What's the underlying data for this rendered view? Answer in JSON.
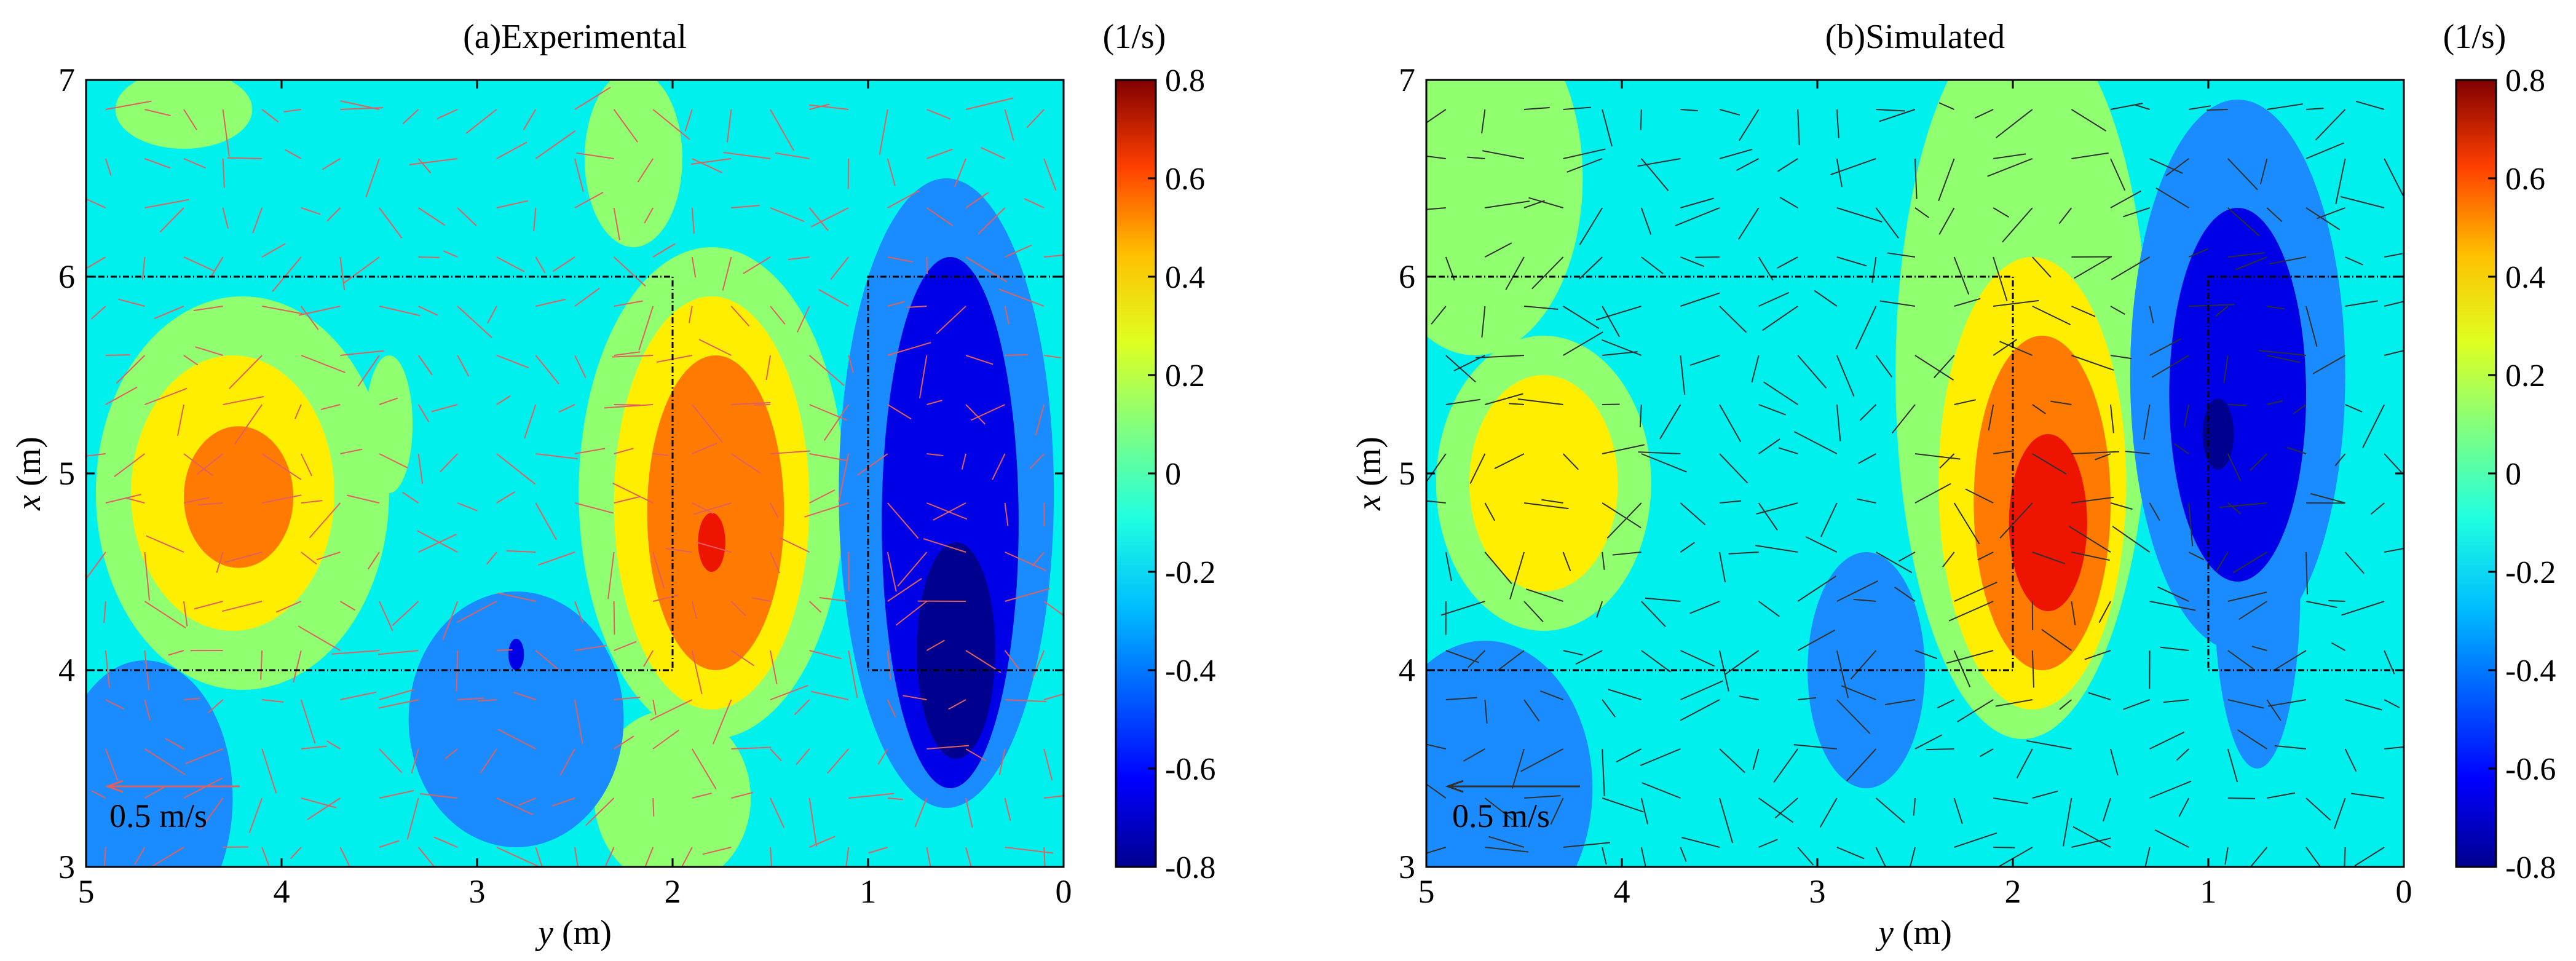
{
  "chart_data": [
    {
      "type": "heatmap",
      "subtype": "filled-contour-with-velocity-vectors",
      "title": "(a)Experimental",
      "colorbar_unit": "(1/s)",
      "xlabel_italic": "y",
      "xlabel_unit": " (m)",
      "ylabel_italic": "x",
      "ylabel_unit": " (m)",
      "xlim": [
        5,
        0
      ],
      "ylim": [
        3,
        7
      ],
      "x_ticks": [
        5,
        4,
        3,
        2,
        1,
        0
      ],
      "y_ticks": [
        3,
        4,
        5,
        6,
        7
      ],
      "colorbar_range": [
        -0.8,
        0.8
      ],
      "colorbar_ticks": [
        "0.8",
        "0.6",
        "0.4",
        "0.2",
        "0",
        "-0.2",
        "-0.4",
        "-0.6",
        "-0.8"
      ],
      "vector_scale_label": "0.5 m/s",
      "vector_scale_value": 0.5,
      "vector_color": "#e06060",
      "rectangles": [
        {
          "y_from": 5,
          "y_to": 2,
          "x_from": 4,
          "x_to": 6
        },
        {
          "y_from": 1,
          "y_to": 0,
          "x_from": 4,
          "x_to": 6
        }
      ],
      "blobs": [
        {
          "y": 4.2,
          "x": 4.9,
          "ry": 0.75,
          "rx": 1.0,
          "level": 0.1
        },
        {
          "y": 4.25,
          "x": 4.9,
          "ry": 0.52,
          "rx": 0.7,
          "level": 0.2
        },
        {
          "y": 4.22,
          "x": 4.88,
          "ry": 0.28,
          "rx": 0.36,
          "level": 0.4
        },
        {
          "y": 1.8,
          "x": 4.9,
          "ry": 0.68,
          "rx": 1.25,
          "level": 0.1
        },
        {
          "y": 1.8,
          "x": 4.85,
          "ry": 0.5,
          "rx": 1.05,
          "level": 0.2
        },
        {
          "y": 1.78,
          "x": 4.8,
          "ry": 0.35,
          "rx": 0.8,
          "level": 0.4
        },
        {
          "y": 1.8,
          "x": 4.65,
          "ry": 0.07,
          "rx": 0.15,
          "level": 0.6
        },
        {
          "y": 2.2,
          "x": 6.6,
          "ry": 0.25,
          "rx": 0.45,
          "level": 0.1
        },
        {
          "y": 2.0,
          "x": 3.35,
          "ry": 0.4,
          "rx": 0.45,
          "level": 0.1
        },
        {
          "y": 3.45,
          "x": 5.25,
          "ry": 0.12,
          "rx": 0.35,
          "level": 0.1
        },
        {
          "y": 4.5,
          "x": 6.85,
          "ry": 0.35,
          "rx": 0.2,
          "level": 0.1
        },
        {
          "y": 0.6,
          "x": 4.9,
          "ry": 0.55,
          "rx": 1.6,
          "level": -0.4
        },
        {
          "y": 0.58,
          "x": 4.75,
          "ry": 0.35,
          "rx": 1.35,
          "level": -0.6
        },
        {
          "y": 0.55,
          "x": 4.1,
          "ry": 0.2,
          "rx": 0.55,
          "level": -0.8
        },
        {
          "y": 2.8,
          "x": 3.75,
          "ry": 0.55,
          "rx": 0.65,
          "level": -0.4
        },
        {
          "y": 4.7,
          "x": 3.35,
          "ry": 0.45,
          "rx": 0.7,
          "level": -0.4
        },
        {
          "y": 2.8,
          "x": 4.08,
          "ry": 0.04,
          "rx": 0.08,
          "level": -0.6
        }
      ]
    },
    {
      "type": "heatmap",
      "subtype": "filled-contour-with-velocity-vectors",
      "title": "(b)Simulated",
      "colorbar_unit": "(1/s)",
      "xlabel_italic": "y",
      "xlabel_unit": " (m)",
      "ylabel_italic": "x",
      "ylabel_unit": " (m)",
      "xlim": [
        5,
        0
      ],
      "ylim": [
        3,
        7
      ],
      "x_ticks": [
        5,
        4,
        3,
        2,
        1,
        0
      ],
      "y_ticks": [
        3,
        4,
        5,
        6,
        7
      ],
      "colorbar_range": [
        -0.8,
        0.8
      ],
      "colorbar_ticks": [
        "0.8",
        "0.6",
        "0.4",
        "0.2",
        "0",
        "-0.2",
        "-0.4",
        "-0.6",
        "-0.8"
      ],
      "vector_scale_label": "0.5 m/s",
      "vector_scale_value": 0.5,
      "vector_color": "#303030",
      "rectangles": [
        {
          "y_from": 5,
          "y_to": 2,
          "x_from": 4,
          "x_to": 6
        },
        {
          "y_from": 1,
          "y_to": 0,
          "x_from": 4,
          "x_to": 6
        }
      ],
      "blobs": [
        {
          "y": 4.75,
          "x": 6.5,
          "ry": 0.55,
          "rx": 0.9,
          "level": 0.1
        },
        {
          "y": 4.4,
          "x": 4.95,
          "ry": 0.55,
          "rx": 0.75,
          "level": 0.1
        },
        {
          "y": 4.4,
          "x": 4.95,
          "ry": 0.38,
          "rx": 0.55,
          "level": 0.2
        },
        {
          "y": 1.95,
          "x": 5.5,
          "ry": 0.65,
          "rx": 1.85,
          "level": 0.1
        },
        {
          "y": 1.9,
          "x": 4.95,
          "ry": 0.48,
          "rx": 1.15,
          "level": 0.2
        },
        {
          "y": 1.85,
          "x": 4.85,
          "ry": 0.35,
          "rx": 0.85,
          "level": 0.4
        },
        {
          "y": 1.82,
          "x": 4.75,
          "ry": 0.2,
          "rx": 0.45,
          "level": 0.6
        },
        {
          "y": 0.85,
          "x": 5.5,
          "ry": 0.55,
          "rx": 1.4,
          "level": -0.4
        },
        {
          "y": 0.75,
          "x": 4.4,
          "ry": 0.22,
          "rx": 0.9,
          "level": -0.4
        },
        {
          "y": 0.85,
          "x": 5.4,
          "ry": 0.35,
          "rx": 0.95,
          "level": -0.6
        },
        {
          "y": 0.95,
          "x": 5.2,
          "ry": 0.08,
          "rx": 0.18,
          "level": -0.8
        },
        {
          "y": 2.75,
          "x": 4.0,
          "ry": 0.3,
          "rx": 0.6,
          "level": -0.4
        },
        {
          "y": 4.7,
          "x": 3.4,
          "ry": 0.55,
          "rx": 0.75,
          "level": -0.4
        }
      ]
    }
  ]
}
